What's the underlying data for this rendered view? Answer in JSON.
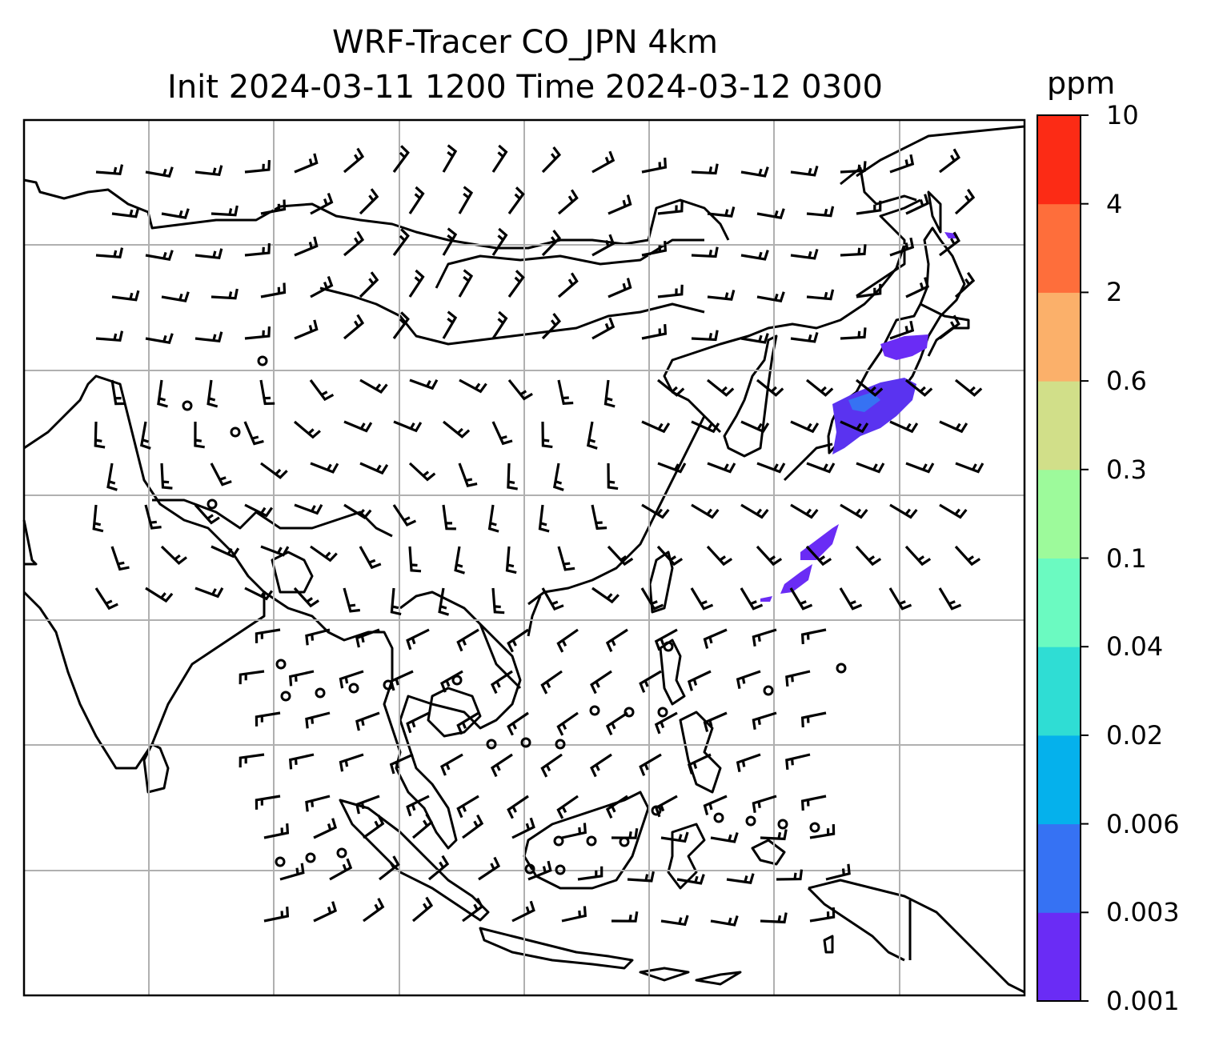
{
  "title": {
    "line1": "WRF-Tracer CO_JPN 4km",
    "line2": "Init 2024-03-11 1200 Time 2024-03-12 0300"
  },
  "colorbar": {
    "unit": "ppm",
    "levels": [
      "0.001",
      "0.003",
      "0.006",
      "0.02",
      "0.04",
      "0.1",
      "0.3",
      "0.6",
      "2",
      "4",
      "10"
    ],
    "colors": [
      "#6a2cf5",
      "#3672f3",
      "#05b1ec",
      "#2fddd4",
      "#6bfac1",
      "#9dfa9b",
      "#d1df89",
      "#fbb06a",
      "#fe6e3b",
      "#fc2b15"
    ]
  },
  "map": {
    "region": "East and Southeast Asia",
    "overlays": [
      "coastlines",
      "country borders",
      "lat-lon gridlines",
      "wind barbs",
      "calm-wind circles",
      "CO tracer shading"
    ],
    "tracer_color": "#6a2cf5",
    "grid_color": "#b0b0b0"
  }
}
